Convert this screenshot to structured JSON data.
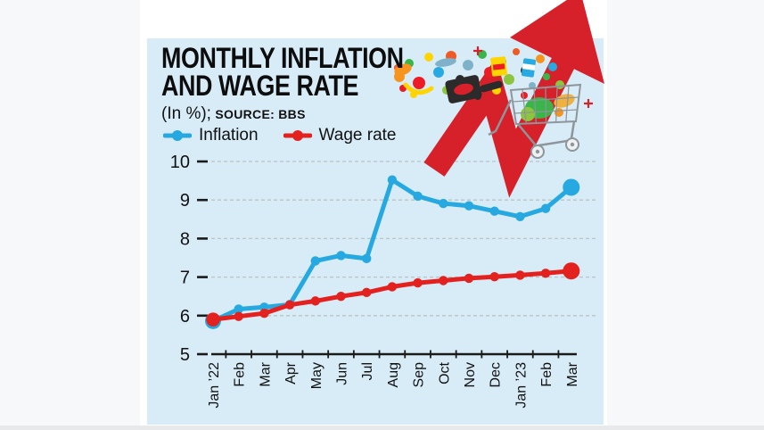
{
  "header": {
    "title_line1": "MONTHLY INFLATION",
    "title_line2": "AND WAGE RATE",
    "unit_note": "(In %);",
    "source_note": "SOURCE: BBS"
  },
  "legend": [
    {
      "label": "Inflation",
      "color": "#25a9e0"
    },
    {
      "label": "Wage rate",
      "color": "#e3211f"
    }
  ],
  "chart_data": {
    "type": "line",
    "categories": [
      "Jan ’22",
      "Feb",
      "Mar",
      "Apr",
      "May",
      "Jun",
      "Jul",
      "Aug",
      "Sep",
      "Oct",
      "Nov",
      "Dec",
      "Jan ’23",
      "Feb",
      "Mar"
    ],
    "series": [
      {
        "name": "Inflation",
        "color": "#25a9e0",
        "values": [
          5.86,
          6.17,
          6.22,
          6.29,
          7.42,
          7.56,
          7.48,
          9.52,
          9.1,
          8.91,
          8.85,
          8.71,
          8.57,
          8.78,
          9.33
        ]
      },
      {
        "name": "Wage rate",
        "color": "#e3211f",
        "values": [
          5.9,
          5.98,
          6.06,
          6.28,
          6.38,
          6.5,
          6.6,
          6.75,
          6.85,
          6.91,
          6.97,
          7.01,
          7.05,
          7.1,
          7.16
        ]
      }
    ],
    "title": "MONTHLY INFLATION AND WAGE RATE",
    "xlabel": "",
    "ylabel": "(In %)",
    "ylim": [
      5,
      10
    ],
    "yticks": [
      5,
      6,
      7,
      8,
      9,
      10
    ],
    "grid": "horizontal-dashed",
    "legend_position": "top-left",
    "source": "SOURCE: BBS"
  },
  "illustration": {
    "arrow_icon": "rising-zigzag-arrow",
    "cart_icon": "shopping-cart",
    "arrow_color": "#d6212a",
    "cart_color": "#8e959b",
    "grocery_colors": [
      "#f7941d",
      "#39b54a",
      "#ed1c24",
      "#ffd400",
      "#27aae1",
      "#8cc63f",
      "#f15a24",
      "#2b2b2b",
      "#7fb2c9"
    ]
  },
  "colors": {
    "card_background": "#d8ecf8",
    "page_background": "#f7f8f9",
    "gridline": "#bcc2c6",
    "axis": "#1a1a1a"
  }
}
